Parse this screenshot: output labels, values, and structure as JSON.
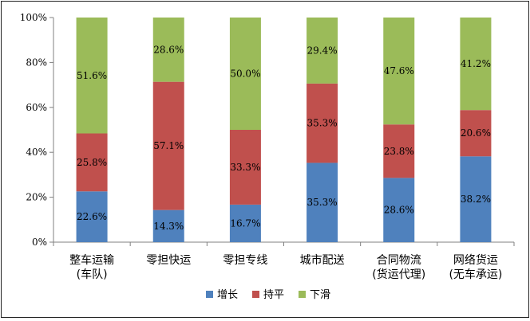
{
  "chart_data": {
    "type": "bar",
    "stacked": true,
    "percent": true,
    "categories": [
      [
        "整车运输",
        "(车队)"
      ],
      [
        "零担快运"
      ],
      [
        "零担专线"
      ],
      [
        "城市配送"
      ],
      [
        "合同物流",
        "(货运代理)"
      ],
      [
        "网络货运",
        "(无车承运)"
      ]
    ],
    "series": [
      {
        "name": "增长",
        "color": "#4f81bd",
        "values": [
          22.6,
          14.3,
          16.7,
          35.3,
          28.6,
          38.2
        ],
        "labels": [
          "22.6%",
          "14.3%",
          "16.7%",
          "35.3%",
          "28.6%",
          "38.2%"
        ]
      },
      {
        "name": "持平",
        "color": "#c0504d",
        "values": [
          25.8,
          57.1,
          33.3,
          35.3,
          23.8,
          20.6
        ],
        "labels": [
          "25.8%",
          "57.1%",
          "33.3%",
          "35.3%",
          "23.8%",
          "20.6%"
        ]
      },
      {
        "name": "下滑",
        "color": "#9bbb59",
        "values": [
          51.6,
          28.6,
          50.0,
          29.4,
          47.6,
          41.2
        ],
        "labels": [
          "51.6%",
          "28.6%",
          "50.0%",
          "29.4%",
          "47.6%",
          "41.2%"
        ]
      }
    ],
    "yticks": [
      "0%",
      "20%",
      "40%",
      "60%",
      "80%",
      "100%"
    ],
    "ylim": [
      0,
      100
    ],
    "legend": "bottom",
    "grid": false
  }
}
